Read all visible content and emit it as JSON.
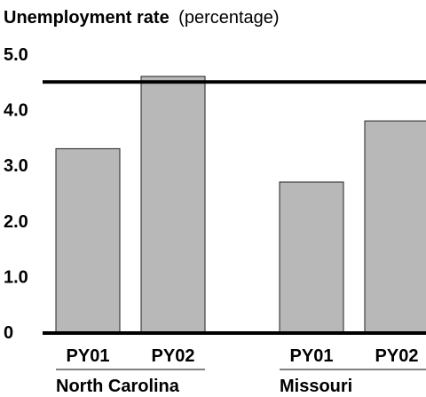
{
  "chart_data": {
    "type": "bar",
    "title": "Unemployment rate",
    "title_unit": "(percentage)",
    "y_ticks": [
      "5.0",
      "4.0",
      "3.0",
      "2.0",
      "1.0",
      "0"
    ],
    "ylim": [
      0,
      5.0
    ],
    "reference_line": 4.5,
    "groups": [
      {
        "label": "North Carolina",
        "categories": [
          "PY01",
          "PY02"
        ],
        "values": [
          3.3,
          4.6
        ]
      },
      {
        "label": "Missouri",
        "categories": [
          "PY01",
          "PY02"
        ],
        "values": [
          2.7,
          3.8
        ]
      }
    ],
    "bar_color": "#b8b8b8",
    "bar_stroke": "#222222",
    "grid": false
  }
}
